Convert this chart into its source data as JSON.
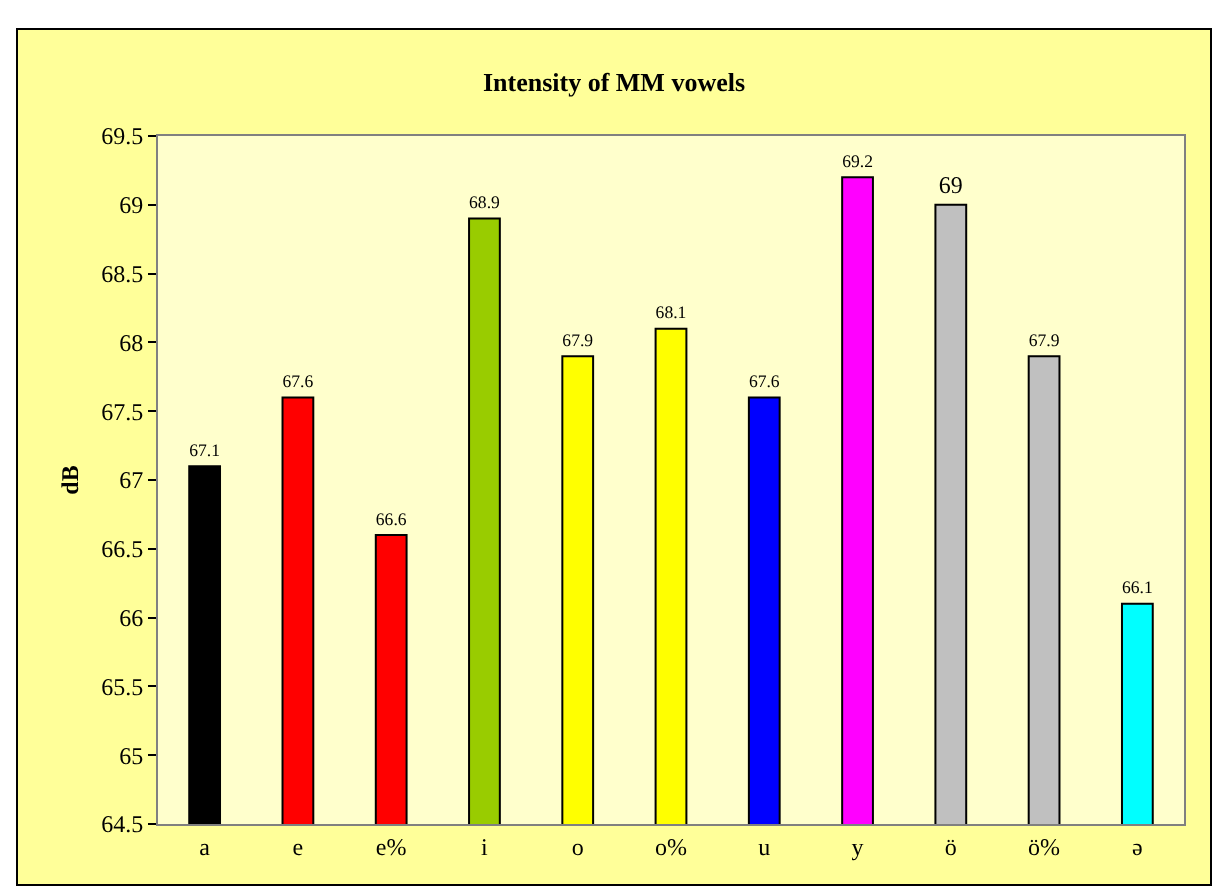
{
  "chart_data": {
    "type": "bar",
    "title": "Intensity of MM vowels",
    "ylabel": "dB",
    "categories": [
      "a",
      "e",
      "e%",
      "i",
      "o",
      "o%",
      "u",
      "y",
      "ö",
      "ö%",
      "ə"
    ],
    "values": [
      67.1,
      67.6,
      66.6,
      68.9,
      67.9,
      68.1,
      67.6,
      69.2,
      69,
      67.9,
      66.1
    ],
    "colors": [
      "#000000",
      "#ff0000",
      "#ff0000",
      "#99cc00",
      "#ffff00",
      "#ffff00",
      "#0000ff",
      "#ff00ff",
      "#c0c0c0",
      "#c0c0c0",
      "#00ffff"
    ],
    "ylim": [
      64.5,
      69.5
    ],
    "yticks": [
      64.5,
      65,
      65.5,
      66,
      66.5,
      67,
      67.5,
      68,
      68.5,
      69,
      69.5
    ],
    "data_labels": true,
    "grid": false,
    "legend": false
  }
}
